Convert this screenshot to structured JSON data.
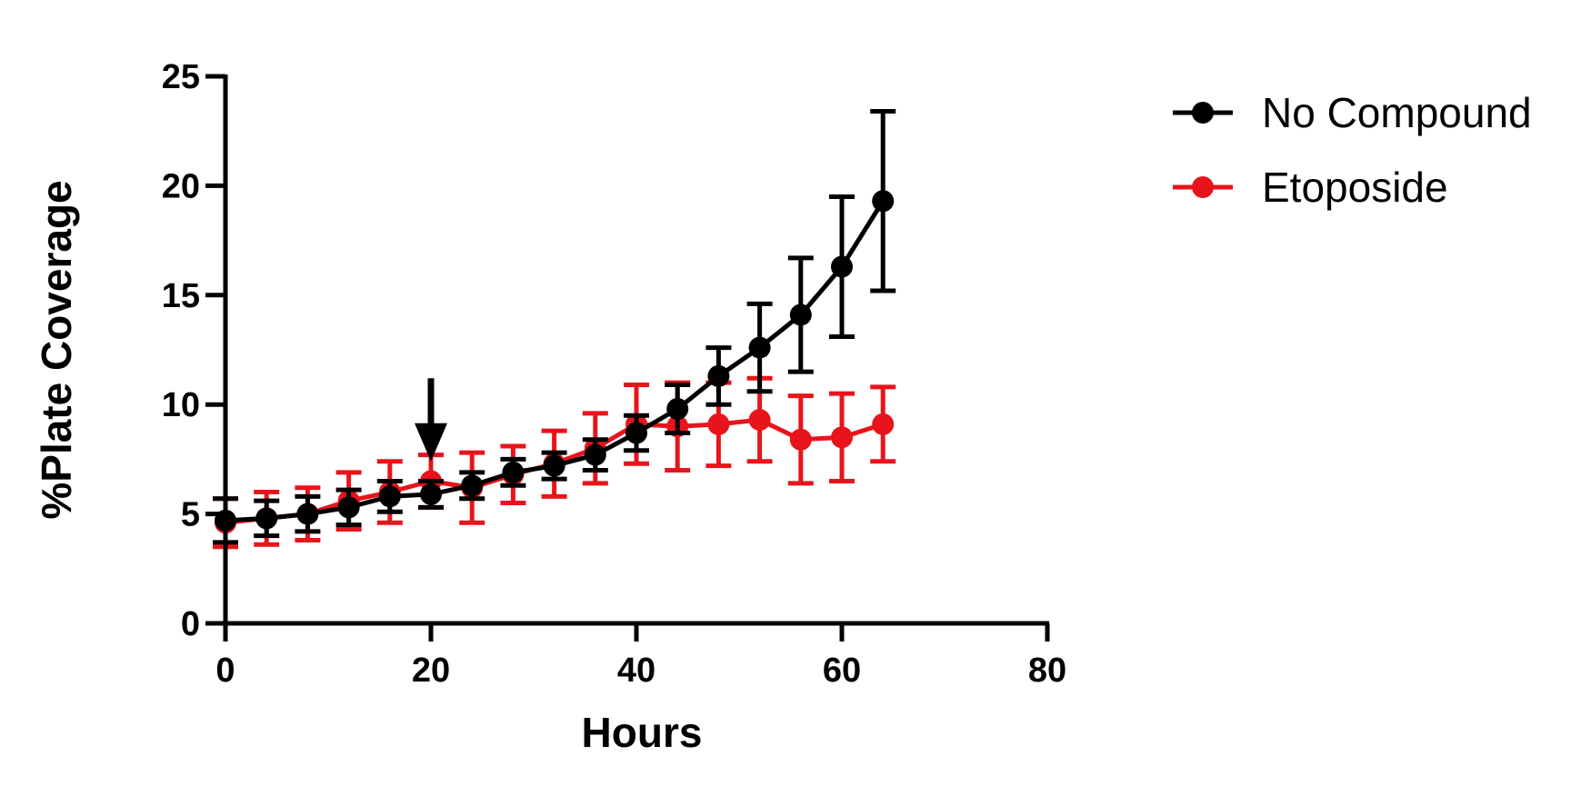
{
  "chart_data": {
    "type": "line",
    "xlabel": "Hours",
    "ylabel": "%Plate Coverage",
    "xlim": [
      0,
      80
    ],
    "ylim": [
      0,
      25
    ],
    "xticks": [
      "0",
      "20",
      "40",
      "60",
      "80"
    ],
    "yticks": [
      "0",
      "5",
      "10",
      "15",
      "20",
      "25"
    ],
    "grid": false,
    "legend_position": "top-right",
    "annotation": {
      "type": "arrow-down",
      "x": 20,
      "y_top": 11.2,
      "y_tip": 7.4
    },
    "series": [
      {
        "name": "No Compound",
        "color": "#000000",
        "x": [
          0,
          4,
          8,
          12,
          16,
          20,
          24,
          28,
          32,
          36,
          40,
          44,
          48,
          52,
          56,
          60,
          64
        ],
        "y": [
          4.7,
          4.8,
          5.0,
          5.3,
          5.8,
          5.9,
          6.3,
          6.9,
          7.2,
          7.7,
          8.7,
          9.8,
          11.3,
          12.6,
          14.1,
          16.3,
          19.3
        ],
        "err": [
          1.0,
          0.8,
          0.8,
          0.8,
          0.7,
          0.6,
          0.6,
          0.6,
          0.6,
          0.7,
          0.8,
          1.1,
          1.3,
          2.0,
          2.6,
          3.2,
          4.1
        ]
      },
      {
        "name": "Etoposide",
        "color": "#e8141c",
        "x": [
          0,
          4,
          8,
          12,
          16,
          20,
          24,
          28,
          32,
          36,
          40,
          44,
          48,
          52,
          56,
          60,
          64
        ],
        "y": [
          4.6,
          4.8,
          5.0,
          5.6,
          6.0,
          6.5,
          6.2,
          6.8,
          7.3,
          8.0,
          9.1,
          9.0,
          9.1,
          9.3,
          8.4,
          8.5,
          9.1
        ],
        "err": [
          1.1,
          1.2,
          1.2,
          1.3,
          1.4,
          1.2,
          1.6,
          1.3,
          1.5,
          1.6,
          1.8,
          2.0,
          1.9,
          1.9,
          2.0,
          2.0,
          1.7
        ]
      }
    ]
  }
}
